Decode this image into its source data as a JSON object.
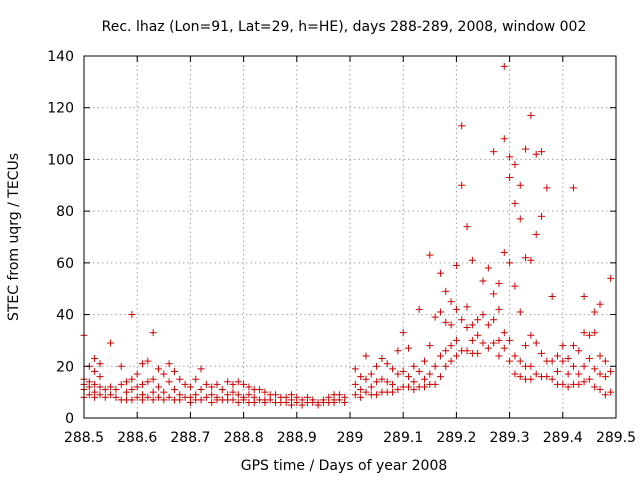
{
  "chart_data": {
    "type": "scatter",
    "title": "Rec. lhaz (Lon=91, Lat=29, h=HE), days 288-289, 2008, window 002",
    "xlabel": "GPS time / Days of year 2008",
    "ylabel": "STEC from uqrg / TECUs",
    "xlim": [
      288.5,
      289.5
    ],
    "ylim": [
      0,
      140
    ],
    "grid": true,
    "marker": "+",
    "color": "#cc0000",
    "x_ticks": [
      288.5,
      288.6,
      288.7,
      288.8,
      288.9,
      289.0,
      289.1,
      289.2,
      289.3,
      289.4,
      289.5
    ],
    "x_tick_labels": [
      "288.5",
      "288.6",
      "288.7",
      "288.8",
      "288.9",
      "289",
      "289.1",
      "289.2",
      "289.3",
      "289.4",
      "289.5"
    ],
    "y_ticks": [
      0,
      20,
      40,
      60,
      80,
      100,
      120,
      140
    ],
    "y_tick_labels": [
      "0",
      "20",
      "40",
      "60",
      "80",
      "100",
      "120",
      "140"
    ],
    "series": [
      {
        "name": "STEC",
        "points": [
          [
            288.5,
            32
          ],
          [
            288.5,
            15
          ],
          [
            288.5,
            13
          ],
          [
            288.5,
            11
          ],
          [
            288.5,
            8
          ],
          [
            288.51,
            20
          ],
          [
            288.51,
            14
          ],
          [
            288.51,
            12
          ],
          [
            288.51,
            9
          ],
          [
            288.52,
            23
          ],
          [
            288.52,
            18
          ],
          [
            288.52,
            13
          ],
          [
            288.52,
            10
          ],
          [
            288.52,
            8
          ],
          [
            288.53,
            21
          ],
          [
            288.53,
            16
          ],
          [
            288.53,
            12
          ],
          [
            288.53,
            9
          ],
          [
            288.54,
            11
          ],
          [
            288.54,
            8
          ],
          [
            288.55,
            29
          ],
          [
            288.55,
            12
          ],
          [
            288.55,
            9
          ],
          [
            288.56,
            11
          ],
          [
            288.56,
            8
          ],
          [
            288.57,
            20
          ],
          [
            288.57,
            13
          ],
          [
            288.57,
            7
          ],
          [
            288.58,
            14
          ],
          [
            288.58,
            10
          ],
          [
            288.58,
            7
          ],
          [
            288.59,
            40
          ],
          [
            288.59,
            15
          ],
          [
            288.59,
            11
          ],
          [
            288.59,
            7
          ],
          [
            288.6,
            17
          ],
          [
            288.6,
            12
          ],
          [
            288.6,
            8
          ],
          [
            288.61,
            21
          ],
          [
            288.61,
            13
          ],
          [
            288.61,
            9
          ],
          [
            288.61,
            7
          ],
          [
            288.62,
            22
          ],
          [
            288.62,
            14
          ],
          [
            288.62,
            8
          ],
          [
            288.63,
            33
          ],
          [
            288.63,
            15
          ],
          [
            288.63,
            10
          ],
          [
            288.63,
            7
          ],
          [
            288.64,
            19
          ],
          [
            288.64,
            12
          ],
          [
            288.64,
            8
          ],
          [
            288.65,
            17
          ],
          [
            288.65,
            10
          ],
          [
            288.65,
            7
          ],
          [
            288.66,
            21
          ],
          [
            288.66,
            14
          ],
          [
            288.66,
            8
          ],
          [
            288.67,
            18
          ],
          [
            288.67,
            11
          ],
          [
            288.67,
            7
          ],
          [
            288.68,
            15
          ],
          [
            288.68,
            9
          ],
          [
            288.68,
            7
          ],
          [
            288.69,
            13
          ],
          [
            288.69,
            8
          ],
          [
            288.7,
            12
          ],
          [
            288.7,
            8
          ],
          [
            288.7,
            6
          ],
          [
            288.71,
            15
          ],
          [
            288.71,
            9
          ],
          [
            288.71,
            7
          ],
          [
            288.72,
            19
          ],
          [
            288.72,
            11
          ],
          [
            288.72,
            7
          ],
          [
            288.73,
            13
          ],
          [
            288.73,
            8
          ],
          [
            288.74,
            12
          ],
          [
            288.74,
            9
          ],
          [
            288.74,
            6
          ],
          [
            288.75,
            13
          ],
          [
            288.75,
            8
          ],
          [
            288.75,
            7
          ],
          [
            288.76,
            11
          ],
          [
            288.76,
            7
          ],
          [
            288.77,
            14
          ],
          [
            288.77,
            9
          ],
          [
            288.77,
            7
          ],
          [
            288.78,
            13
          ],
          [
            288.78,
            10
          ],
          [
            288.78,
            7
          ],
          [
            288.79,
            14
          ],
          [
            288.79,
            9
          ],
          [
            288.79,
            6
          ],
          [
            288.8,
            13
          ],
          [
            288.8,
            8
          ],
          [
            288.8,
            7
          ],
          [
            288.81,
            12
          ],
          [
            288.81,
            9
          ],
          [
            288.81,
            6
          ],
          [
            288.82,
            11
          ],
          [
            288.82,
            8
          ],
          [
            288.82,
            6
          ],
          [
            288.83,
            11
          ],
          [
            288.83,
            7
          ],
          [
            288.84,
            10
          ],
          [
            288.84,
            7
          ],
          [
            288.84,
            6
          ],
          [
            288.85,
            9
          ],
          [
            288.85,
            7
          ],
          [
            288.86,
            9
          ],
          [
            288.86,
            6
          ],
          [
            288.87,
            8
          ],
          [
            288.87,
            6
          ],
          [
            288.88,
            8
          ],
          [
            288.88,
            6
          ],
          [
            288.89,
            9
          ],
          [
            288.89,
            7
          ],
          [
            288.89,
            5
          ],
          [
            288.9,
            8
          ],
          [
            288.9,
            6
          ],
          [
            288.91,
            7
          ],
          [
            288.91,
            5
          ],
          [
            288.92,
            8
          ],
          [
            288.92,
            6
          ],
          [
            288.93,
            7
          ],
          [
            288.93,
            6
          ],
          [
            288.94,
            6
          ],
          [
            288.94,
            5
          ],
          [
            288.95,
            7
          ],
          [
            288.95,
            6
          ],
          [
            288.96,
            8
          ],
          [
            288.96,
            6
          ],
          [
            288.97,
            9
          ],
          [
            288.97,
            7
          ],
          [
            288.97,
            6
          ],
          [
            288.98,
            9
          ],
          [
            288.98,
            7
          ],
          [
            288.99,
            8
          ],
          [
            288.99,
            6
          ],
          [
            289.01,
            19
          ],
          [
            289.01,
            13
          ],
          [
            289.01,
            9
          ],
          [
            289.02,
            16
          ],
          [
            289.02,
            11
          ],
          [
            289.02,
            8
          ],
          [
            289.03,
            24
          ],
          [
            289.03,
            15
          ],
          [
            289.03,
            10
          ],
          [
            289.04,
            17
          ],
          [
            289.04,
            12
          ],
          [
            289.04,
            9
          ],
          [
            289.05,
            20
          ],
          [
            289.05,
            14
          ],
          [
            289.05,
            9
          ],
          [
            289.06,
            23
          ],
          [
            289.06,
            15
          ],
          [
            289.06,
            10
          ],
          [
            289.07,
            21
          ],
          [
            289.07,
            14
          ],
          [
            289.07,
            10
          ],
          [
            289.08,
            19
          ],
          [
            289.08,
            13
          ],
          [
            289.08,
            10
          ],
          [
            289.09,
            26
          ],
          [
            289.09,
            17
          ],
          [
            289.09,
            11
          ],
          [
            289.1,
            33
          ],
          [
            289.1,
            18
          ],
          [
            289.1,
            12
          ],
          [
            289.11,
            27
          ],
          [
            289.11,
            16
          ],
          [
            289.11,
            12
          ],
          [
            289.12,
            20
          ],
          [
            289.12,
            14
          ],
          [
            289.12,
            11
          ],
          [
            289.13,
            42
          ],
          [
            289.13,
            18
          ],
          [
            289.13,
            12
          ],
          [
            289.14,
            22
          ],
          [
            289.14,
            15
          ],
          [
            289.14,
            12
          ],
          [
            289.15,
            63
          ],
          [
            289.15,
            28
          ],
          [
            289.15,
            17
          ],
          [
            289.15,
            13
          ],
          [
            289.16,
            39
          ],
          [
            289.16,
            20
          ],
          [
            289.16,
            13
          ],
          [
            289.17,
            56
          ],
          [
            289.17,
            41
          ],
          [
            289.17,
            24
          ],
          [
            289.17,
            16
          ],
          [
            289.18,
            49
          ],
          [
            289.18,
            37
          ],
          [
            289.18,
            26
          ],
          [
            289.18,
            20
          ],
          [
            289.19,
            45
          ],
          [
            289.19,
            36
          ],
          [
            289.19,
            28
          ],
          [
            289.19,
            22
          ],
          [
            289.2,
            59
          ],
          [
            289.2,
            42
          ],
          [
            289.2,
            30
          ],
          [
            289.2,
            24
          ],
          [
            289.21,
            113
          ],
          [
            289.21,
            90
          ],
          [
            289.21,
            38
          ],
          [
            289.21,
            26
          ],
          [
            289.22,
            74
          ],
          [
            289.22,
            43
          ],
          [
            289.22,
            35
          ],
          [
            289.22,
            26
          ],
          [
            289.23,
            61
          ],
          [
            289.23,
            36
          ],
          [
            289.23,
            30
          ],
          [
            289.23,
            25
          ],
          [
            289.24,
            38
          ],
          [
            289.24,
            32
          ],
          [
            289.24,
            25
          ],
          [
            289.25,
            53
          ],
          [
            289.25,
            40
          ],
          [
            289.25,
            29
          ],
          [
            289.26,
            58
          ],
          [
            289.26,
            36
          ],
          [
            289.26,
            27
          ],
          [
            289.27,
            103
          ],
          [
            289.27,
            48
          ],
          [
            289.27,
            38
          ],
          [
            289.27,
            29
          ],
          [
            289.28,
            52
          ],
          [
            289.28,
            42
          ],
          [
            289.28,
            30
          ],
          [
            289.28,
            24
          ],
          [
            289.29,
            136
          ],
          [
            289.29,
            108
          ],
          [
            289.29,
            64
          ],
          [
            289.29,
            33
          ],
          [
            289.29,
            27
          ],
          [
            289.3,
            101
          ],
          [
            289.3,
            93
          ],
          [
            289.3,
            60
          ],
          [
            289.3,
            30
          ],
          [
            289.3,
            22
          ],
          [
            289.31,
            98
          ],
          [
            289.31,
            83
          ],
          [
            289.31,
            51
          ],
          [
            289.31,
            24
          ],
          [
            289.31,
            17
          ],
          [
            289.32,
            90
          ],
          [
            289.32,
            77
          ],
          [
            289.32,
            41
          ],
          [
            289.32,
            22
          ],
          [
            289.32,
            16
          ],
          [
            289.33,
            104
          ],
          [
            289.33,
            62
          ],
          [
            289.33,
            28
          ],
          [
            289.33,
            20
          ],
          [
            289.33,
            15
          ],
          [
            289.34,
            117
          ],
          [
            289.34,
            61
          ],
          [
            289.34,
            32
          ],
          [
            289.34,
            20
          ],
          [
            289.34,
            15
          ],
          [
            289.35,
            102
          ],
          [
            289.35,
            71
          ],
          [
            289.35,
            29
          ],
          [
            289.35,
            17
          ],
          [
            289.36,
            103
          ],
          [
            289.36,
            78
          ],
          [
            289.36,
            25
          ],
          [
            289.36,
            16
          ],
          [
            289.37,
            89
          ],
          [
            289.37,
            22
          ],
          [
            289.37,
            16
          ],
          [
            289.38,
            47
          ],
          [
            289.38,
            22
          ],
          [
            289.38,
            15
          ],
          [
            289.39,
            24
          ],
          [
            289.39,
            18
          ],
          [
            289.39,
            13
          ],
          [
            289.4,
            28
          ],
          [
            289.4,
            22
          ],
          [
            289.4,
            13
          ],
          [
            289.41,
            23
          ],
          [
            289.41,
            17
          ],
          [
            289.41,
            12
          ],
          [
            289.42,
            89
          ],
          [
            289.42,
            28
          ],
          [
            289.42,
            20
          ],
          [
            289.42,
            13
          ],
          [
            289.43,
            26
          ],
          [
            289.43,
            17
          ],
          [
            289.43,
            13
          ],
          [
            289.44,
            47
          ],
          [
            289.44,
            33
          ],
          [
            289.44,
            20
          ],
          [
            289.44,
            14
          ],
          [
            289.45,
            32
          ],
          [
            289.45,
            23
          ],
          [
            289.45,
            15
          ],
          [
            289.46,
            41
          ],
          [
            289.46,
            33
          ],
          [
            289.46,
            19
          ],
          [
            289.46,
            12
          ],
          [
            289.47,
            44
          ],
          [
            289.47,
            24
          ],
          [
            289.47,
            17
          ],
          [
            289.47,
            11
          ],
          [
            289.48,
            22
          ],
          [
            289.48,
            16
          ],
          [
            289.48,
            9
          ],
          [
            289.49,
            54
          ],
          [
            289.49,
            18
          ],
          [
            289.49,
            10
          ]
        ]
      }
    ]
  }
}
